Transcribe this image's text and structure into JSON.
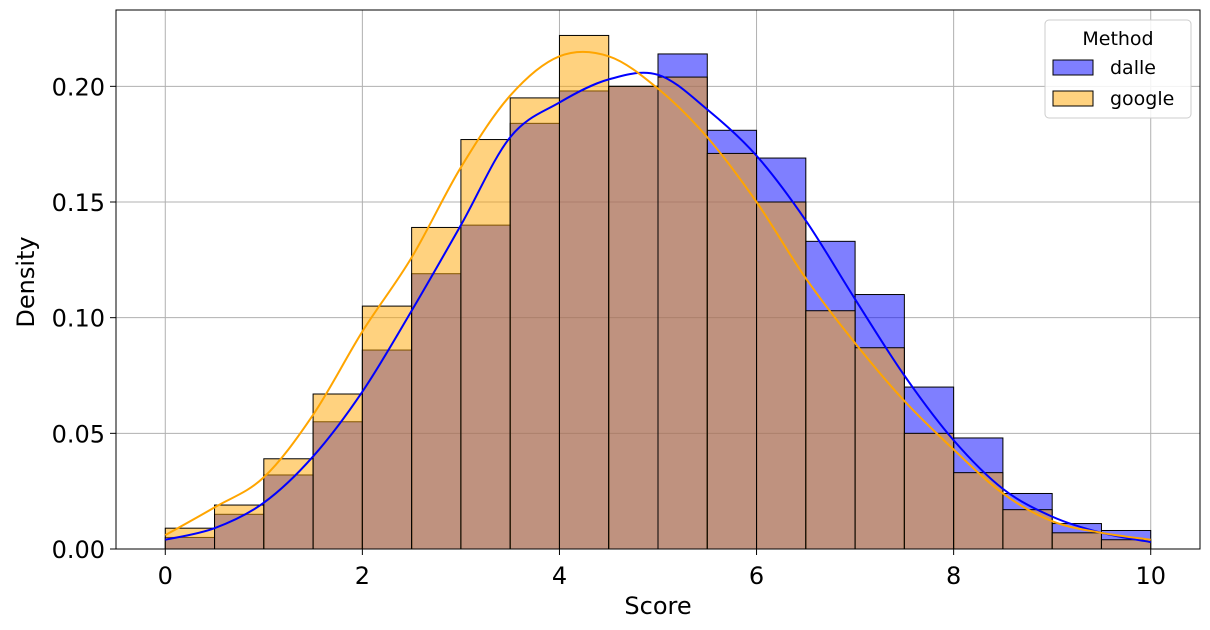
{
  "chart_data": {
    "type": "histogram",
    "xlabel": "Score",
    "ylabel": "Density",
    "xlim": [
      -0.5,
      10.5
    ],
    "ylim": [
      0,
      0.233
    ],
    "xticks": [
      "0",
      "2",
      "4",
      "6",
      "8",
      "10"
    ],
    "yticks": [
      "0.00",
      "0.05",
      "0.10",
      "0.15",
      "0.20"
    ],
    "grid": true,
    "bin_edges": [
      0,
      0.5,
      1,
      1.5,
      2,
      2.5,
      3,
      3.5,
      4,
      4.5,
      5,
      5.5,
      6,
      6.5,
      7,
      7.5,
      8,
      8.5,
      9,
      9.5,
      10
    ],
    "legend": {
      "title": "Method",
      "position": "top-right"
    },
    "series": [
      {
        "name": "dalle",
        "color": "#0000ff",
        "values": [
          0.005,
          0.015,
          0.032,
          0.055,
          0.086,
          0.119,
          0.14,
          0.184,
          0.198,
          0.2,
          0.214,
          0.181,
          0.169,
          0.133,
          0.11,
          0.07,
          0.048,
          0.024,
          0.011,
          0.008
        ],
        "kde_x": [
          0,
          0.5,
          1,
          1.5,
          2,
          2.5,
          3,
          3.5,
          4,
          4.5,
          5,
          5.5,
          6,
          6.5,
          7,
          7.5,
          8,
          8.5,
          9,
          9.5,
          10
        ],
        "kde_y": [
          0.004,
          0.009,
          0.02,
          0.04,
          0.068,
          0.103,
          0.14,
          0.178,
          0.193,
          0.203,
          0.205,
          0.19,
          0.17,
          0.142,
          0.108,
          0.075,
          0.047,
          0.026,
          0.014,
          0.007,
          0.003
        ]
      },
      {
        "name": "google",
        "color": "#ffa500",
        "values": [
          0.009,
          0.019,
          0.039,
          0.067,
          0.105,
          0.139,
          0.177,
          0.195,
          0.222,
          0.2,
          0.204,
          0.171,
          0.15,
          0.103,
          0.087,
          0.05,
          0.033,
          0.017,
          0.007,
          0.004
        ],
        "kde_x": [
          0,
          0.5,
          1,
          1.5,
          2,
          2.5,
          3,
          3.5,
          4,
          4.5,
          5,
          5.5,
          6,
          6.5,
          7,
          7.5,
          8,
          8.5,
          9,
          9.5,
          10
        ],
        "kde_y": [
          0.006,
          0.018,
          0.031,
          0.058,
          0.094,
          0.126,
          0.165,
          0.196,
          0.213,
          0.213,
          0.199,
          0.178,
          0.15,
          0.117,
          0.089,
          0.064,
          0.043,
          0.024,
          0.012,
          0.007,
          0.004
        ]
      }
    ]
  }
}
